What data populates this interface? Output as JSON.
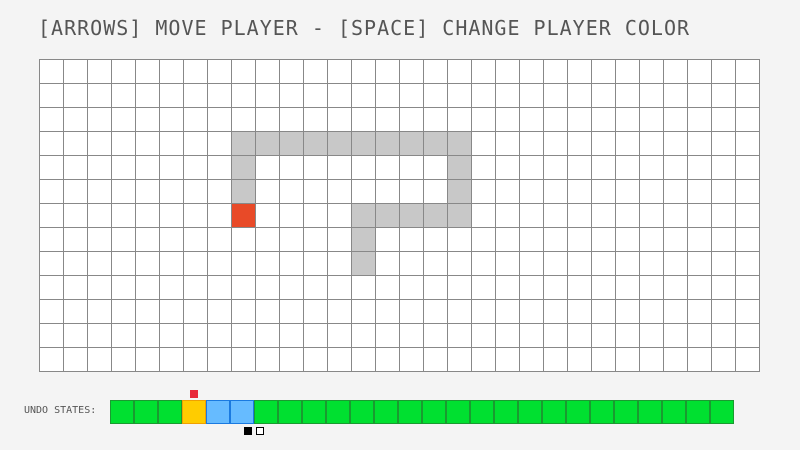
{
  "title": "[ARROWS] MOVE PLAYER - [SPACE] CHANGE PLAYER COLOR",
  "grid": {
    "cols": 30,
    "rows": 13,
    "walls": [
      [
        3,
        8
      ],
      [
        3,
        9
      ],
      [
        3,
        10
      ],
      [
        3,
        11
      ],
      [
        3,
        12
      ],
      [
        3,
        13
      ],
      [
        3,
        14
      ],
      [
        3,
        15
      ],
      [
        3,
        16
      ],
      [
        3,
        17
      ],
      [
        4,
        8
      ],
      [
        4,
        17
      ],
      [
        5,
        8
      ],
      [
        5,
        17
      ],
      [
        6,
        13
      ],
      [
        6,
        14
      ],
      [
        6,
        15
      ],
      [
        6,
        16
      ],
      [
        6,
        17
      ],
      [
        7,
        13
      ],
      [
        8,
        13
      ]
    ],
    "player": [
      6,
      8
    ],
    "player_color": "#e84a28"
  },
  "undo": {
    "label": "UNDO STATES:",
    "states": [
      "green",
      "green",
      "green",
      "yellow",
      "blue",
      "blue",
      "green",
      "green",
      "green",
      "green",
      "green",
      "green",
      "green",
      "green",
      "green",
      "green",
      "green",
      "green",
      "green",
      "green",
      "green",
      "green",
      "green",
      "green",
      "green",
      "green"
    ],
    "colors": {
      "green": [
        "#00e030",
        "#1a9a30"
      ],
      "yellow": [
        "#ffcc00",
        "#f0a000"
      ],
      "blue": [
        "#66bbff",
        "#1a7ae0"
      ]
    },
    "current_index": 3,
    "cursor_index": 5
  }
}
